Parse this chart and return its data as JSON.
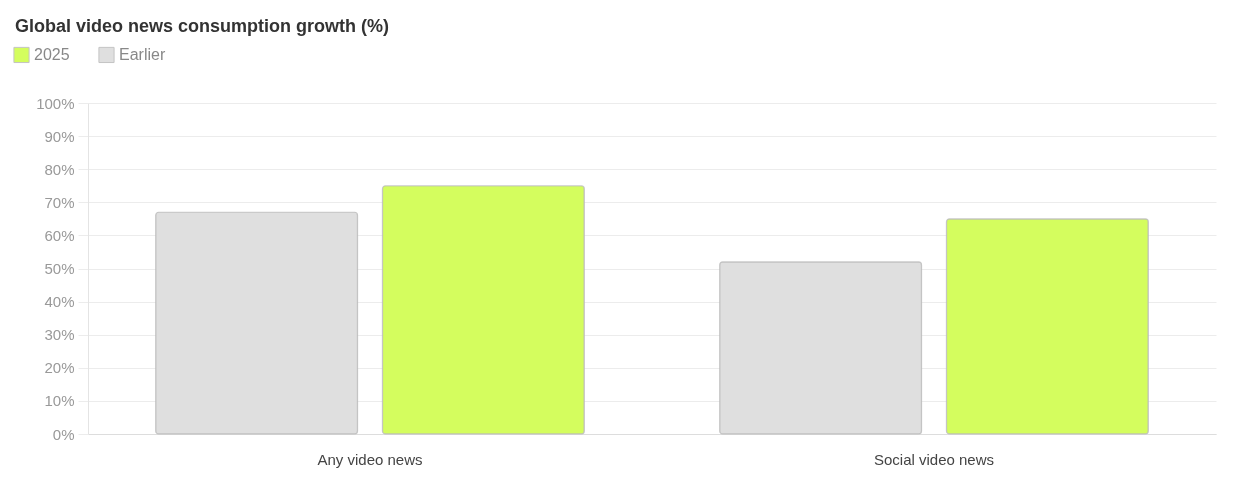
{
  "chart_data": {
    "type": "bar",
    "title": "Global video news consumption growth (%)",
    "categories": [
      "Any video news",
      "Social video news"
    ],
    "series": [
      {
        "name": "2025",
        "color": "#d4fd5e",
        "values": [
          75,
          65
        ]
      },
      {
        "name": "Earlier",
        "color": "#dfdfdf",
        "values": [
          67,
          52
        ]
      }
    ],
    "ylim": [
      0,
      100
    ],
    "yticks": [
      {
        "value": 0,
        "label": "0%"
      },
      {
        "value": 10,
        "label": "10%"
      },
      {
        "value": 20,
        "label": "20%"
      },
      {
        "value": 30,
        "label": "30%"
      },
      {
        "value": 40,
        "label": "40%"
      },
      {
        "value": 50,
        "label": "50%"
      },
      {
        "value": 60,
        "label": "60%"
      },
      {
        "value": 70,
        "label": "70%"
      },
      {
        "value": 80,
        "label": "80%"
      },
      {
        "value": 90,
        "label": "90%"
      },
      {
        "value": 100,
        "label": "100%"
      }
    ],
    "grid": "y",
    "legend": "top left"
  }
}
